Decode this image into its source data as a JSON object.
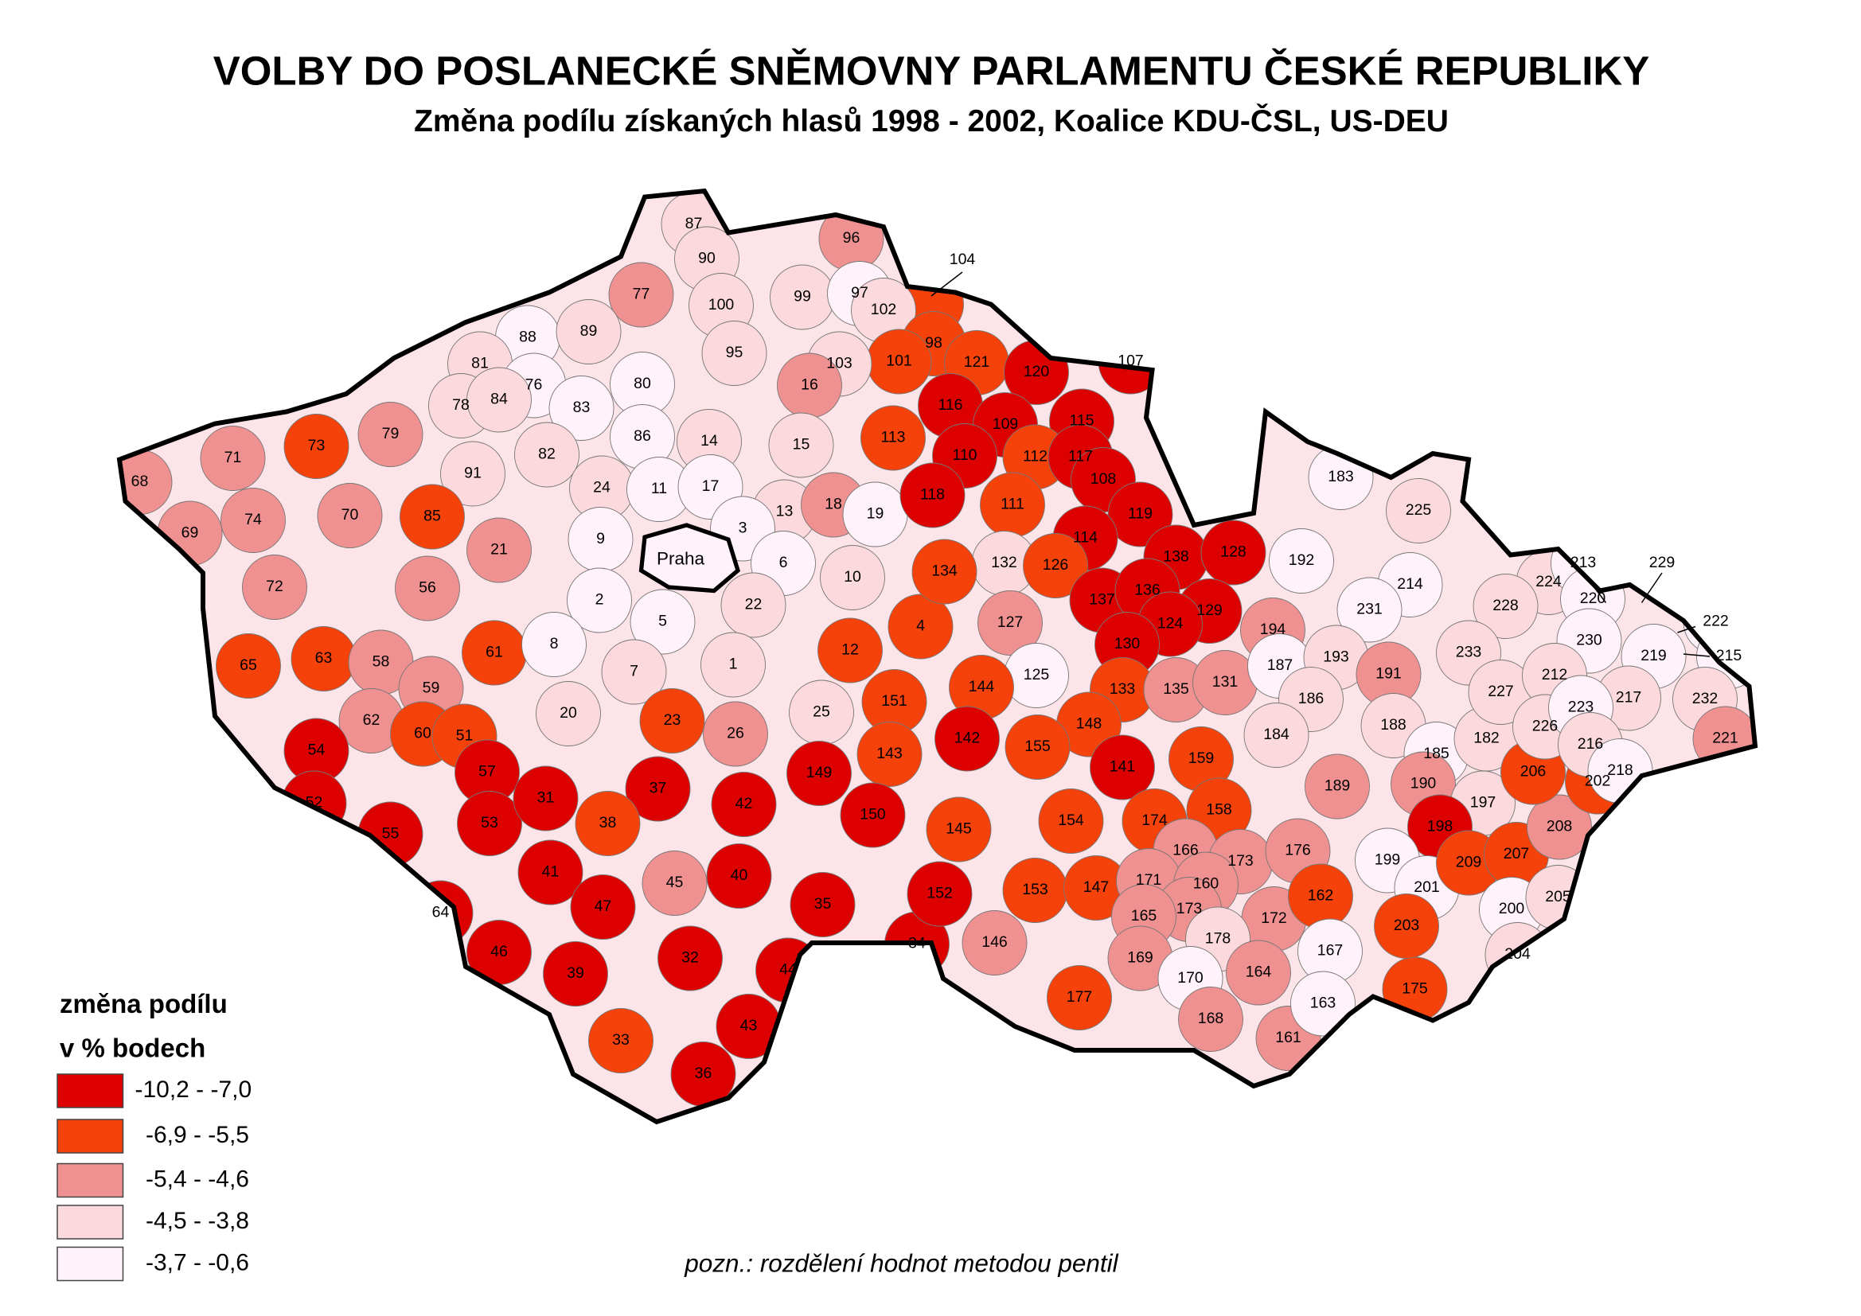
{
  "title": "VOLBY DO POSLANECKÉ SNĚMOVNY PARLAMENTU ČESKÉ REPUBLIKY",
  "subtitle": "Změna podílu získaných hlasů 1998 - 2002, Koalice KDU-ČSL, US-DEU",
  "capital": "Praha",
  "legend": {
    "title": [
      "změna podílu",
      "v % bodech"
    ],
    "classes": [
      {
        "label": "-10,2 - -7,0",
        "color": "#dc0000"
      },
      {
        "label": "-6,9 - -5,5",
        "color": "#f5420a"
      },
      {
        "label": "-5,4 - -4,6",
        "color": "#f09191"
      },
      {
        "label": "-4,5 - -3,8",
        "color": "#fcd9dc"
      },
      {
        "label": "-3,7 - -0,6",
        "color": "#fff2fa"
      }
    ]
  },
  "note": "pozn.: rozdělení hodnot metodou pentil",
  "districts": [
    {
      "label": 87,
      "class": 3
    },
    {
      "label": 90,
      "class": 3
    },
    {
      "label": 96,
      "class": 2
    },
    {
      "label": 77,
      "class": 2
    },
    {
      "label": 100,
      "class": 3
    },
    {
      "label": 99,
      "class": 3
    },
    {
      "label": 97,
      "class": 4
    },
    {
      "label": 104,
      "class": 1
    },
    {
      "label": 102,
      "class": 3
    },
    {
      "label": 98,
      "class": 1
    },
    {
      "label": 121,
      "class": 1
    },
    {
      "label": 101,
      "class": 1
    },
    {
      "label": 95,
      "class": 3
    },
    {
      "label": 103,
      "class": 3
    },
    {
      "label": 88,
      "class": 4
    },
    {
      "label": 89,
      "class": 3
    },
    {
      "label": 81,
      "class": 3
    },
    {
      "label": 76,
      "class": 4
    },
    {
      "label": 80,
      "class": 4
    },
    {
      "label": 78,
      "class": 3
    },
    {
      "label": 84,
      "class": 3
    },
    {
      "label": 83,
      "class": 4
    },
    {
      "label": 86,
      "class": 4
    },
    {
      "label": 79,
      "class": 2
    },
    {
      "label": 82,
      "class": 3
    },
    {
      "label": 91,
      "class": 3
    },
    {
      "label": 73,
      "class": 1
    },
    {
      "label": 71,
      "class": 2
    },
    {
      "label": 68,
      "class": 2
    },
    {
      "label": 70,
      "class": 2
    },
    {
      "label": 74,
      "class": 2
    },
    {
      "label": 69,
      "class": 2
    },
    {
      "label": 72,
      "class": 2
    },
    {
      "label": 85,
      "class": 1
    },
    {
      "label": 21,
      "class": 2
    },
    {
      "label": 56,
      "class": 2
    },
    {
      "label": 65,
      "class": 1
    },
    {
      "label": 63,
      "class": 1
    },
    {
      "label": 58,
      "class": 2
    },
    {
      "label": 61,
      "class": 1
    },
    {
      "label": 59,
      "class": 2
    },
    {
      "label": 62,
      "class": 2
    },
    {
      "label": 60,
      "class": 1
    },
    {
      "label": 51,
      "class": 1
    },
    {
      "label": 54,
      "class": 0
    },
    {
      "label": 57,
      "class": 0
    },
    {
      "label": 52,
      "class": 0
    },
    {
      "label": 55,
      "class": 0
    },
    {
      "label": 53,
      "class": 0
    },
    {
      "label": 64,
      "class": 0
    },
    {
      "label": 16,
      "class": 2
    },
    {
      "label": 14,
      "class": 3
    },
    {
      "label": 15,
      "class": 3
    },
    {
      "label": 24,
      "class": 3
    },
    {
      "label": 11,
      "class": 4
    },
    {
      "label": 17,
      "class": 4
    },
    {
      "label": 13,
      "class": 3
    },
    {
      "label": 18,
      "class": 2
    },
    {
      "label": 19,
      "class": 4
    },
    {
      "label": 9,
      "class": 4
    },
    {
      "label": 3,
      "class": 4
    },
    {
      "label": 6,
      "class": 4
    },
    {
      "label": 10,
      "class": 3
    },
    {
      "label": 2,
      "class": 4
    },
    {
      "label": 5,
      "class": 4
    },
    {
      "label": 22,
      "class": 3
    },
    {
      "label": 12,
      "class": 1
    },
    {
      "label": 4,
      "class": 1
    },
    {
      "label": 8,
      "class": 4
    },
    {
      "label": 7,
      "class": 3
    },
    {
      "label": 1,
      "class": 3
    },
    {
      "label": 20,
      "class": 3
    },
    {
      "label": 23,
      "class": 1
    },
    {
      "label": 26,
      "class": 2
    },
    {
      "label": 25,
      "class": 3
    },
    {
      "label": 31,
      "class": 0
    },
    {
      "label": 37,
      "class": 0
    },
    {
      "label": 42,
      "class": 0
    },
    {
      "label": 38,
      "class": 1
    },
    {
      "label": 41,
      "class": 0
    },
    {
      "label": 45,
      "class": 2
    },
    {
      "label": 40,
      "class": 0
    },
    {
      "label": 47,
      "class": 0
    },
    {
      "label": 35,
      "class": 0
    },
    {
      "label": 46,
      "class": 0
    },
    {
      "label": 39,
      "class": 0
    },
    {
      "label": 32,
      "class": 0
    },
    {
      "label": 44,
      "class": 0
    },
    {
      "label": 34,
      "class": 0
    },
    {
      "label": 43,
      "class": 0
    },
    {
      "label": 33,
      "class": 1
    },
    {
      "label": 36,
      "class": 0
    },
    {
      "label": 120,
      "class": 0
    },
    {
      "label": 107,
      "class": 0
    },
    {
      "label": 116,
      "class": 0
    },
    {
      "label": 109,
      "class": 0
    },
    {
      "label": 115,
      "class": 0
    },
    {
      "label": 113,
      "class": 1
    },
    {
      "label": 110,
      "class": 0
    },
    {
      "label": 112,
      "class": 1
    },
    {
      "label": 117,
      "class": 0
    },
    {
      "label": 108,
      "class": 0
    },
    {
      "label": 118,
      "class": 0
    },
    {
      "label": 111,
      "class": 1
    },
    {
      "label": 119,
      "class": 0
    },
    {
      "label": 114,
      "class": 0
    },
    {
      "label": 132,
      "class": 3
    },
    {
      "label": 126,
      "class": 1
    },
    {
      "label": 134,
      "class": 1
    },
    {
      "label": 138,
      "class": 0
    },
    {
      "label": 128,
      "class": 0
    },
    {
      "label": 137,
      "class": 0
    },
    {
      "label": 136,
      "class": 0
    },
    {
      "label": 129,
      "class": 0
    },
    {
      "label": 124,
      "class": 0
    },
    {
      "label": 127,
      "class": 2
    },
    {
      "label": 130,
      "class": 0
    },
    {
      "label": 125,
      "class": 4
    },
    {
      "label": 133,
      "class": 1
    },
    {
      "label": 135,
      "class": 2
    },
    {
      "label": 131,
      "class": 2
    },
    {
      "label": 144,
      "class": 1
    },
    {
      "label": 151,
      "class": 1
    },
    {
      "label": 148,
      "class": 1
    },
    {
      "label": 142,
      "class": 0
    },
    {
      "label": 155,
      "class": 1
    },
    {
      "label": 143,
      "class": 1
    },
    {
      "label": 141,
      "class": 0
    },
    {
      "label": 149,
      "class": 0
    },
    {
      "label": 150,
      "class": 0
    },
    {
      "label": 145,
      "class": 1
    },
    {
      "label": 154,
      "class": 1
    },
    {
      "label": 152,
      "class": 0
    },
    {
      "label": 153,
      "class": 1
    },
    {
      "label": 147,
      "class": 1
    },
    {
      "label": 159,
      "class": 1
    },
    {
      "label": 174,
      "class": 1
    },
    {
      "label": 158,
      "class": 1
    },
    {
      "label": 166,
      "class": 2
    },
    {
      "label": 173,
      "class": 2
    },
    {
      "label": 176,
      "class": 2
    },
    {
      "label": 171,
      "class": 2
    },
    {
      "label": 160,
      "class": 2
    },
    {
      "label": 173,
      "class": 2
    },
    {
      "label": 165,
      "class": 2
    },
    {
      "label": 172,
      "class": 2
    },
    {
      "label": 162,
      "class": 1
    },
    {
      "label": 146,
      "class": 2
    },
    {
      "label": 178,
      "class": 3
    },
    {
      "label": 169,
      "class": 2
    },
    {
      "label": 170,
      "class": 4
    },
    {
      "label": 164,
      "class": 2
    },
    {
      "label": 177,
      "class": 1
    },
    {
      "label": 168,
      "class": 2
    },
    {
      "label": 161,
      "class": 2
    },
    {
      "label": 167,
      "class": 4
    },
    {
      "label": 163,
      "class": 4
    },
    {
      "label": 175,
      "class": 1
    },
    {
      "label": 183,
      "class": 4
    },
    {
      "label": 192,
      "class": 4
    },
    {
      "label": 225,
      "class": 3
    },
    {
      "label": 214,
      "class": 4
    },
    {
      "label": 231,
      "class": 4
    },
    {
      "label": 194,
      "class": 2
    },
    {
      "label": 187,
      "class": 4
    },
    {
      "label": 193,
      "class": 3
    },
    {
      "label": 191,
      "class": 2
    },
    {
      "label": 186,
      "class": 3
    },
    {
      "label": 188,
      "class": 3
    },
    {
      "label": 184,
      "class": 3
    },
    {
      "label": 185,
      "class": 4
    },
    {
      "label": 182,
      "class": 3
    },
    {
      "label": 189,
      "class": 2
    },
    {
      "label": 190,
      "class": 2
    },
    {
      "label": 197,
      "class": 3
    },
    {
      "label": 198,
      "class": 0
    },
    {
      "label": 199,
      "class": 4
    },
    {
      "label": 201,
      "class": 4
    },
    {
      "label": 209,
      "class": 1
    },
    {
      "label": 207,
      "class": 1
    },
    {
      "label": 208,
      "class": 2
    },
    {
      "label": 206,
      "class": 1
    },
    {
      "label": 202,
      "class": 1
    },
    {
      "label": 203,
      "class": 1
    },
    {
      "label": 200,
      "class": 4
    },
    {
      "label": 205,
      "class": 3
    },
    {
      "label": 204,
      "class": 3
    },
    {
      "label": 224,
      "class": 3
    },
    {
      "label": 213,
      "class": 4
    },
    {
      "label": 229,
      "class": 4
    },
    {
      "label": 228,
      "class": 3
    },
    {
      "label": 220,
      "class": 4
    },
    {
      "label": 233,
      "class": 3
    },
    {
      "label": 230,
      "class": 4
    },
    {
      "label": 222,
      "class": 4
    },
    {
      "label": 219,
      "class": 4
    },
    {
      "label": 215,
      "class": 4
    },
    {
      "label": 227,
      "class": 3
    },
    {
      "label": 212,
      "class": 3
    },
    {
      "label": 217,
      "class": 3
    },
    {
      "label": 232,
      "class": 3
    },
    {
      "label": 226,
      "class": 3
    },
    {
      "label": 223,
      "class": 4
    },
    {
      "label": 216,
      "class": 3
    },
    {
      "label": 221,
      "class": 2
    },
    {
      "label": 218,
      "class": 4
    }
  ]
}
